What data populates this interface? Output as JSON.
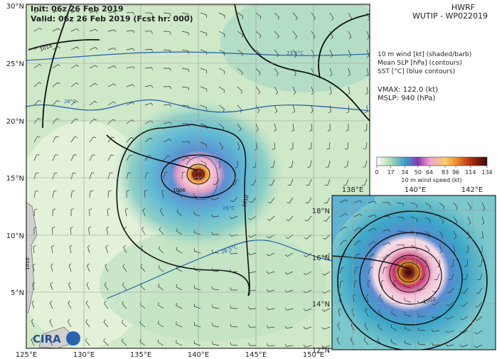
{
  "header": {
    "model": "HWRF",
    "storm": "WUTIP - WP022019",
    "init": "Init:  06z 26 Feb 2019",
    "valid": "Valid: 06z 26 Feb 2019 (Fcst hr: 000)"
  },
  "legend": [
    "10 m wind [kt] (shaded/barb)",
    "Mean SLP [hPa] (contours)",
    "SST [°C] (blue contours)"
  ],
  "stats": [
    "VMAX: 122.0 (kt)",
    "MSLP:  940 (hPa)"
  ],
  "colorbar": {
    "label": "10 m wind speed (kt)",
    "range": [
      0,
      134
    ],
    "ticks": [
      0,
      17,
      34,
      50,
      64,
      83,
      96,
      114,
      134
    ]
  },
  "main_map": {
    "lon_labels": [
      "125°E",
      "130°E",
      "135°E",
      "140°E",
      "145°E",
      "150°E"
    ],
    "lat_labels": [
      "30°N",
      "25°N",
      "20°N",
      "15°N",
      "10°N",
      "5°N"
    ],
    "contour_labels": [
      "1018",
      "23.5°C",
      "26°C",
      "1006",
      "26°C",
      "1010",
      "28.5°C",
      "1010"
    ]
  },
  "inset_map": {
    "lon_labels": [
      "138°E",
      "140°E",
      "142°E"
    ],
    "lat_labels": [
      "18°N",
      "16°N",
      "14°N",
      "12°N"
    ],
    "contour_labels": [
      "1002"
    ]
  },
  "logo": "CIRA"
}
